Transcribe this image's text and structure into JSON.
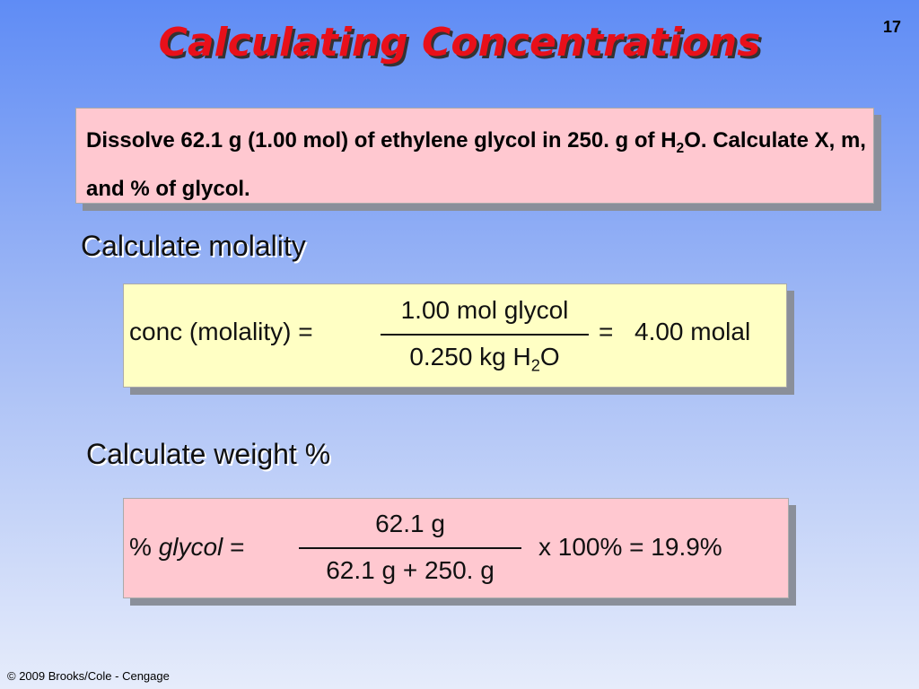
{
  "slide_number": "17",
  "title": "Calculating Concentrations",
  "problem": {
    "text_before": "Dissolve 62.1 g (1.00 mol) of ethylene glycol in 250. g of H",
    "subscript": "2",
    "text_after": "O. Calculate X, m, and % of glycol."
  },
  "molality": {
    "heading": "Calculate molality",
    "lhs": "conc (molality) =",
    "numerator": "1.00 mol glycol",
    "denominator": {
      "before": "0.250 kg H",
      "subscript": "2",
      "after": "O"
    },
    "equals": "=",
    "result": "4.00 molal"
  },
  "weight_percent": {
    "heading": "Calculate weight %",
    "lhs": {
      "symbol": "%",
      "word": "glycol",
      "equals": "="
    },
    "numerator": "62.1 g",
    "denominator": "62.1 g + 250. g",
    "result": "x 100% = 19.9%"
  },
  "footer": "© 2009 Brooks/Cole - Cengage"
}
